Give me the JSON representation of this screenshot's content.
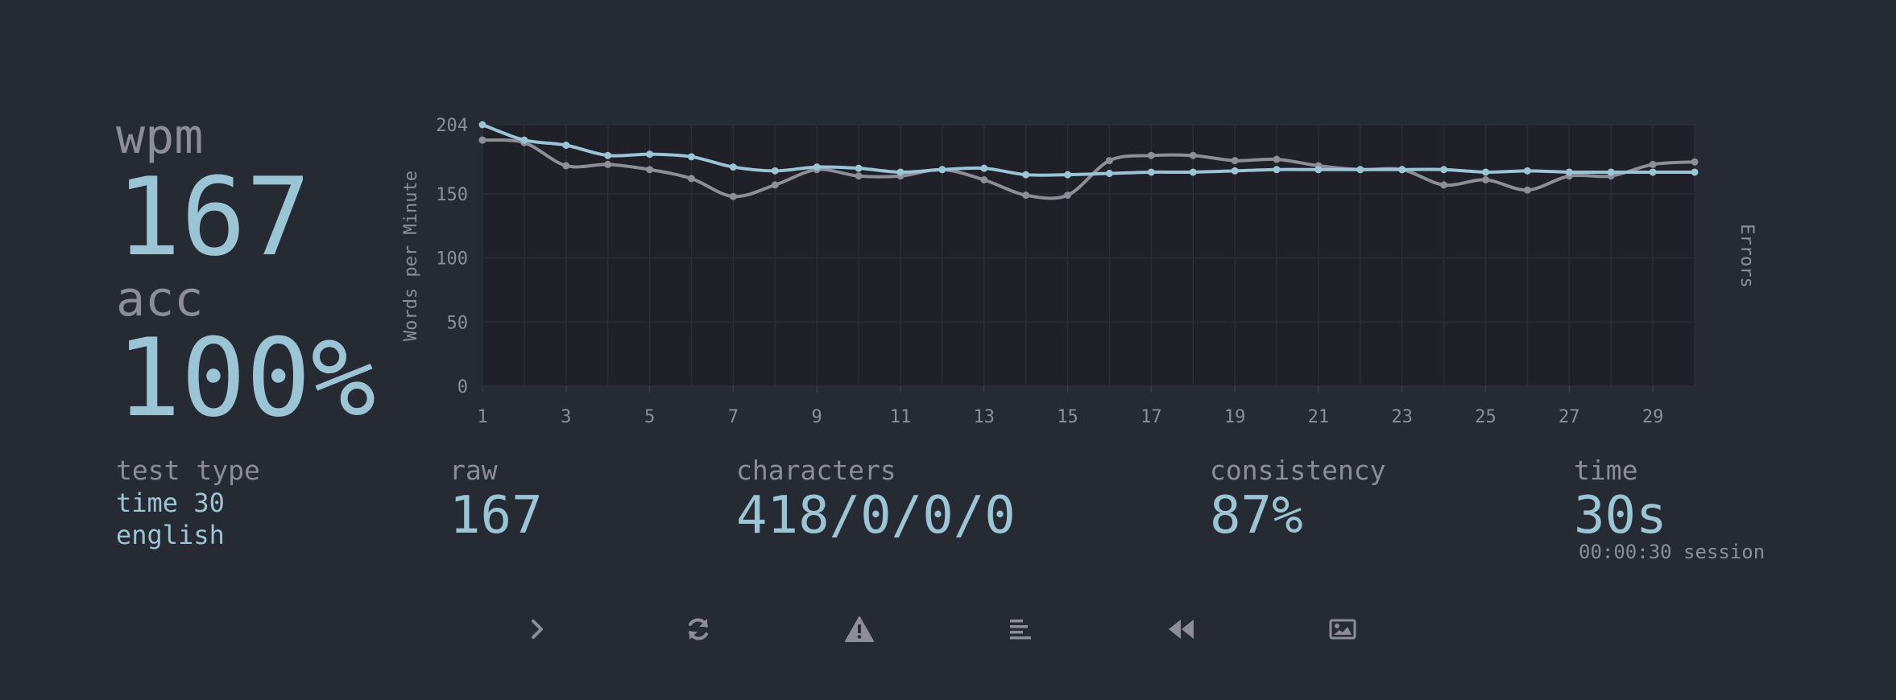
{
  "stats": {
    "wpm_label": "wpm",
    "wpm_value": "167",
    "acc_label": "acc",
    "acc_value": "100%"
  },
  "details": {
    "test_type_label": "test type",
    "test_type_line1": "time 30",
    "test_type_line2": "english",
    "raw_label": "raw",
    "raw_value": "167",
    "characters_label": "characters",
    "characters_value": "418/0/0/0",
    "consistency_label": "consistency",
    "consistency_value": "87%",
    "time_label": "time",
    "time_value": "30s",
    "session_text": "00:00:30 session"
  },
  "colors": {
    "background": "#262a33",
    "accent": "#9bc4d5",
    "muted": "#8d8c99",
    "plot_bg": "#1f2028",
    "wpm_line": "#9bc4d5",
    "raw_line": "#8e8e99"
  },
  "actions": [
    {
      "name": "next-test-button",
      "icon": "chevron-right-icon"
    },
    {
      "name": "restart-button",
      "icon": "refresh-icon"
    },
    {
      "name": "report-button",
      "icon": "warning-icon"
    },
    {
      "name": "word-history-button",
      "icon": "align-left-icon"
    },
    {
      "name": "replay-button",
      "icon": "backward-icon"
    },
    {
      "name": "screenshot-button",
      "icon": "image-icon"
    }
  ],
  "chart_data": {
    "type": "line",
    "ylabel": "Words per Minute",
    "y2label": "Errors",
    "ylim": [
      0,
      204
    ],
    "yticks": [
      0,
      50,
      100,
      150,
      204
    ],
    "xlim": [
      1,
      30
    ],
    "xticks": [
      1,
      3,
      5,
      7,
      9,
      11,
      13,
      15,
      17,
      19,
      21,
      23,
      25,
      27,
      29
    ],
    "grid": true,
    "x": [
      1,
      2,
      3,
      4,
      5,
      6,
      7,
      8,
      9,
      10,
      11,
      12,
      13,
      14,
      15,
      16,
      17,
      18,
      19,
      20,
      21,
      22,
      23,
      24,
      25,
      26,
      27,
      28,
      29,
      30
    ],
    "series": [
      {
        "values": [
          204,
          192,
          188,
          180,
          181,
          179,
          171,
          168,
          171,
          170,
          167,
          169,
          170,
          165,
          165,
          166,
          167,
          167,
          168,
          169,
          169,
          169,
          169,
          169,
          167,
          168,
          167,
          167,
          167,
          167
        ],
        "color": "#9bc4d5"
      },
      {
        "values": [
          192,
          190,
          172,
          173,
          169,
          162,
          148,
          157,
          169,
          164,
          164,
          169,
          161,
          149,
          149,
          176,
          180,
          180,
          176,
          177,
          172,
          169,
          169,
          157,
          161,
          153,
          164,
          164,
          173,
          175
        ],
        "color": "#8e8e99"
      }
    ]
  }
}
